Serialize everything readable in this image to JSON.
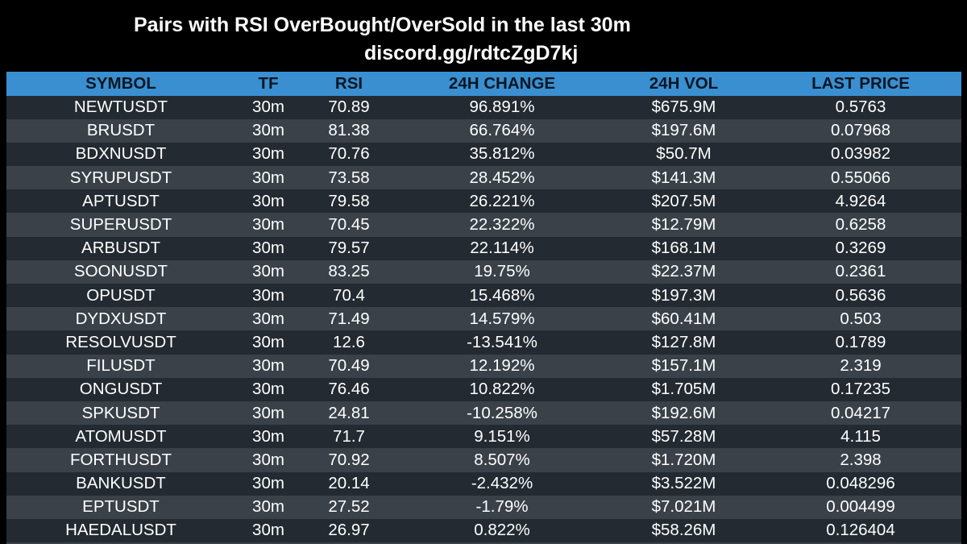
{
  "title": "Pairs with RSI OverBought/OverSold in the last 30m",
  "subtitle": "discord.gg/rdtcZgD7kj",
  "columns": {
    "symbol": "SYMBOL",
    "tf": "TF",
    "rsi": "RSI",
    "change": "24H CHANGE",
    "vol": "24H VOL",
    "price": "LAST PRICE"
  },
  "rows": [
    {
      "symbol": "NEWTUSDT",
      "tf": "30m",
      "rsi": "70.89",
      "change": "96.891%",
      "vol": "$675.9M",
      "price": "0.5763"
    },
    {
      "symbol": "BRUSDT",
      "tf": "30m",
      "rsi": "81.38",
      "change": "66.764%",
      "vol": "$197.6M",
      "price": "0.07968"
    },
    {
      "symbol": "BDXNUSDT",
      "tf": "30m",
      "rsi": "70.76",
      "change": "35.812%",
      "vol": "$50.7M",
      "price": "0.03982"
    },
    {
      "symbol": "SYRUPUSDT",
      "tf": "30m",
      "rsi": "73.58",
      "change": "28.452%",
      "vol": "$141.3M",
      "price": "0.55066"
    },
    {
      "symbol": "APTUSDT",
      "tf": "30m",
      "rsi": "79.58",
      "change": "26.221%",
      "vol": "$207.5M",
      "price": "4.9264"
    },
    {
      "symbol": "SUPERUSDT",
      "tf": "30m",
      "rsi": "70.45",
      "change": "22.322%",
      "vol": "$12.79M",
      "price": "0.6258"
    },
    {
      "symbol": "ARBUSDT",
      "tf": "30m",
      "rsi": "79.57",
      "change": "22.114%",
      "vol": "$168.1M",
      "price": "0.3269"
    },
    {
      "symbol": "SOONUSDT",
      "tf": "30m",
      "rsi": "83.25",
      "change": "19.75%",
      "vol": "$22.37M",
      "price": "0.2361"
    },
    {
      "symbol": "OPUSDT",
      "tf": "30m",
      "rsi": "70.4",
      "change": "15.468%",
      "vol": "$197.3M",
      "price": "0.5636"
    },
    {
      "symbol": "DYDXUSDT",
      "tf": "30m",
      "rsi": "71.49",
      "change": "14.579%",
      "vol": "$60.41M",
      "price": "0.503"
    },
    {
      "symbol": "RESOLVUSDT",
      "tf": "30m",
      "rsi": "12.6",
      "change": "-13.541%",
      "vol": "$127.8M",
      "price": "0.1789"
    },
    {
      "symbol": "FILUSDT",
      "tf": "30m",
      "rsi": "70.49",
      "change": "12.192%",
      "vol": "$157.1M",
      "price": "2.319"
    },
    {
      "symbol": "ONGUSDT",
      "tf": "30m",
      "rsi": "76.46",
      "change": "10.822%",
      "vol": "$1.705M",
      "price": "0.17235"
    },
    {
      "symbol": "SPKUSDT",
      "tf": "30m",
      "rsi": "24.81",
      "change": "-10.258%",
      "vol": "$192.6M",
      "price": "0.04217"
    },
    {
      "symbol": "ATOMUSDT",
      "tf": "30m",
      "rsi": "71.7",
      "change": "9.151%",
      "vol": "$57.28M",
      "price": "4.115"
    },
    {
      "symbol": "FORTHUSDT",
      "tf": "30m",
      "rsi": "70.92",
      "change": "8.507%",
      "vol": "$1.720M",
      "price": "2.398"
    },
    {
      "symbol": "BANKUSDT",
      "tf": "30m",
      "rsi": "20.14",
      "change": "-2.432%",
      "vol": "$3.522M",
      "price": "0.048296"
    },
    {
      "symbol": "EPTUSDT",
      "tf": "30m",
      "rsi": "27.52",
      "change": "-1.79%",
      "vol": "$7.021M",
      "price": "0.004499"
    },
    {
      "symbol": "HAEDALUSDT",
      "tf": "30m",
      "rsi": "26.97",
      "change": "0.822%",
      "vol": "$58.26M",
      "price": "0.126404"
    }
  ]
}
